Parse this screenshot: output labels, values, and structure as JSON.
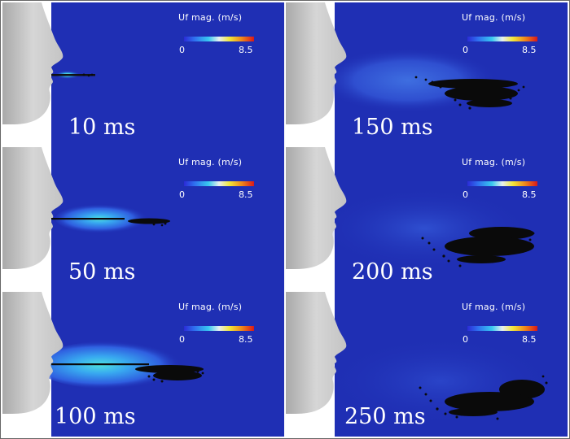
{
  "colorbar": {
    "title": "Uf mag. (m/s)",
    "min_label": "0",
    "max_label": "8.5"
  },
  "panels": [
    {
      "time_label": "10 ms"
    },
    {
      "time_label": "150 ms"
    },
    {
      "time_label": "50 ms"
    },
    {
      "time_label": "200 ms"
    },
    {
      "time_label": "100 ms"
    },
    {
      "time_label": "250 ms"
    }
  ],
  "colors": {
    "field_background": "#1f2fb4",
    "face": "#cfcfcf",
    "droplets": "#0a0a0a"
  }
}
